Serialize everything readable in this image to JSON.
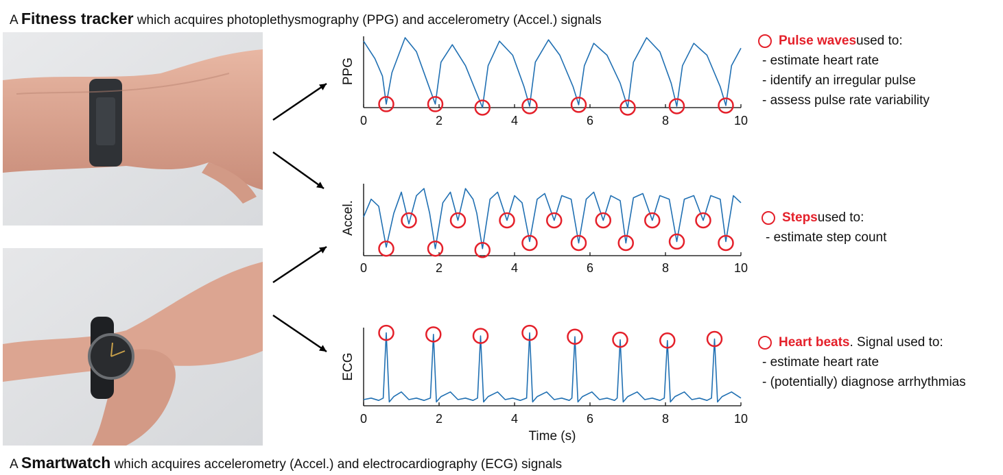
{
  "top_caption": {
    "prefix": "A",
    "device": "Fitness tracker",
    "suffix": "which acquires photoplethysmography (PPG) and accelerometry (Accel.) signals"
  },
  "bottom_caption": {
    "prefix": "A",
    "device": "Smartwatch",
    "suffix": "which acquires accelerometry (Accel.) and electrocardiography (ECG) signals"
  },
  "photos": [
    {
      "device": "fitness-tracker-on-wrist"
    },
    {
      "device": "smartwatch-on-wrist"
    }
  ],
  "colors": {
    "signal": "#1f6fb2",
    "marker": "#e4202a",
    "arrow": "#000000",
    "axis": "#000000"
  },
  "notes": {
    "ppg": {
      "key": "Pulse waves",
      "rest": " used to:",
      "items": [
        "- estimate heart rate",
        "- identify an irregular pulse",
        "- assess pulse rate variability"
      ]
    },
    "accel": {
      "key": "Steps",
      "rest": " used to:",
      "items": [
        "- estimate step count"
      ]
    },
    "ecg": {
      "key": "Heart beats",
      "rest": ". Signal used to:",
      "items": [
        "- estimate heart rate",
        "- (potentially) diagnose arrhythmias"
      ]
    }
  },
  "chart_data": [
    {
      "type": "line",
      "ylabel": "PPG",
      "xlabel": "",
      "xlim": [
        0,
        10
      ],
      "xticks": [
        0,
        2,
        4,
        6,
        8,
        10
      ],
      "marked_points_label": "Pulse waves",
      "marker_x": [
        0.6,
        1.9,
        3.15,
        4.4,
        5.7,
        7.0,
        8.3,
        9.6
      ],
      "series": [
        {
          "x": [
            0,
            0.3,
            0.5,
            0.6,
            0.75,
            1.1,
            1.4,
            1.7,
            1.9,
            2.05,
            2.35,
            2.7,
            3.0,
            3.15,
            3.3,
            3.6,
            3.95,
            4.25,
            4.4,
            4.55,
            4.9,
            5.2,
            5.55,
            5.7,
            5.85,
            6.1,
            6.45,
            6.8,
            7.0,
            7.15,
            7.5,
            7.85,
            8.15,
            8.3,
            8.45,
            8.75,
            9.1,
            9.45,
            9.6,
            9.75,
            10
          ],
          "y": [
            0.95,
            0.7,
            0.45,
            0.05,
            0.5,
            1.0,
            0.8,
            0.35,
            0.05,
            0.65,
            0.9,
            0.6,
            0.2,
            0.0,
            0.6,
            0.95,
            0.75,
            0.3,
            0.02,
            0.65,
            0.97,
            0.75,
            0.3,
            0.04,
            0.6,
            0.92,
            0.75,
            0.35,
            0.0,
            0.65,
            1.0,
            0.8,
            0.35,
            0.02,
            0.6,
            0.92,
            0.75,
            0.3,
            0.03,
            0.6,
            0.85
          ]
        }
      ]
    },
    {
      "type": "line",
      "ylabel": "Accel.",
      "xlabel": "",
      "xlim": [
        0,
        10
      ],
      "xticks": [
        0,
        2,
        4,
        6,
        8,
        10
      ],
      "marked_points_label": "Steps",
      "marker_points": [
        [
          0.6,
          0.1
        ],
        [
          1.2,
          0.5
        ],
        [
          1.9,
          0.1
        ],
        [
          2.5,
          0.5
        ],
        [
          3.15,
          0.08
        ],
        [
          3.8,
          0.5
        ],
        [
          4.4,
          0.18
        ],
        [
          5.05,
          0.5
        ],
        [
          5.7,
          0.18
        ],
        [
          6.35,
          0.5
        ],
        [
          6.95,
          0.18
        ],
        [
          7.65,
          0.5
        ],
        [
          8.3,
          0.2
        ],
        [
          9.0,
          0.5
        ],
        [
          9.6,
          0.18
        ]
      ],
      "series": [
        {
          "x": [
            0,
            0.2,
            0.4,
            0.6,
            0.8,
            1.0,
            1.2,
            1.4,
            1.6,
            1.75,
            1.9,
            2.1,
            2.3,
            2.5,
            2.7,
            2.9,
            3.0,
            3.15,
            3.35,
            3.55,
            3.8,
            4.0,
            4.2,
            4.4,
            4.6,
            4.8,
            5.05,
            5.25,
            5.5,
            5.7,
            5.9,
            6.1,
            6.35,
            6.55,
            6.8,
            6.95,
            7.15,
            7.4,
            7.65,
            7.85,
            8.1,
            8.3,
            8.5,
            8.75,
            9.0,
            9.2,
            9.45,
            9.6,
            9.8,
            10
          ],
          "y": [
            0.55,
            0.8,
            0.7,
            0.12,
            0.6,
            0.9,
            0.45,
            0.85,
            0.95,
            0.6,
            0.1,
            0.75,
            0.9,
            0.5,
            0.95,
            0.8,
            0.6,
            0.1,
            0.8,
            0.9,
            0.5,
            0.85,
            0.75,
            0.2,
            0.8,
            0.88,
            0.5,
            0.85,
            0.8,
            0.18,
            0.8,
            0.9,
            0.5,
            0.85,
            0.78,
            0.18,
            0.82,
            0.88,
            0.5,
            0.85,
            0.8,
            0.2,
            0.8,
            0.85,
            0.5,
            0.85,
            0.8,
            0.2,
            0.85,
            0.75
          ]
        }
      ]
    },
    {
      "type": "line",
      "ylabel": "ECG",
      "xlabel": "Time (s)",
      "xlim": [
        0,
        10
      ],
      "xticks": [
        0,
        2,
        4,
        6,
        8,
        10
      ],
      "marked_points_label": "Heart beats",
      "marker_x": [
        0.6,
        1.85,
        3.1,
        4.4,
        5.6,
        6.8,
        8.05,
        9.3
      ],
      "series": [
        {
          "x": [
            0,
            0.2,
            0.4,
            0.52,
            0.6,
            0.68,
            0.8,
            1.0,
            1.2,
            1.4,
            1.6,
            1.77,
            1.85,
            1.93,
            2.05,
            2.3,
            2.5,
            2.7,
            2.9,
            3.02,
            3.1,
            3.18,
            3.3,
            3.55,
            3.75,
            3.95,
            4.15,
            4.32,
            4.4,
            4.48,
            4.6,
            4.85,
            5.05,
            5.25,
            5.45,
            5.52,
            5.6,
            5.68,
            5.8,
            6.05,
            6.25,
            6.45,
            6.65,
            6.72,
            6.8,
            6.88,
            7.0,
            7.25,
            7.45,
            7.65,
            7.85,
            7.97,
            8.05,
            8.13,
            8.25,
            8.5,
            8.7,
            8.9,
            9.1,
            9.22,
            9.3,
            9.38,
            9.5,
            9.75,
            10
          ],
          "y": [
            0.08,
            0.1,
            0.07,
            0.1,
            0.95,
            0.05,
            0.12,
            0.18,
            0.08,
            0.1,
            0.07,
            0.1,
            0.93,
            0.05,
            0.12,
            0.18,
            0.08,
            0.1,
            0.07,
            0.1,
            0.91,
            0.05,
            0.12,
            0.18,
            0.08,
            0.1,
            0.07,
            0.1,
            0.95,
            0.05,
            0.12,
            0.18,
            0.08,
            0.1,
            0.07,
            0.1,
            0.9,
            0.05,
            0.12,
            0.18,
            0.08,
            0.1,
            0.07,
            0.1,
            0.86,
            0.05,
            0.12,
            0.18,
            0.08,
            0.1,
            0.07,
            0.1,
            0.85,
            0.05,
            0.12,
            0.18,
            0.08,
            0.1,
            0.07,
            0.1,
            0.87,
            0.05,
            0.12,
            0.18,
            0.1
          ]
        }
      ]
    }
  ]
}
